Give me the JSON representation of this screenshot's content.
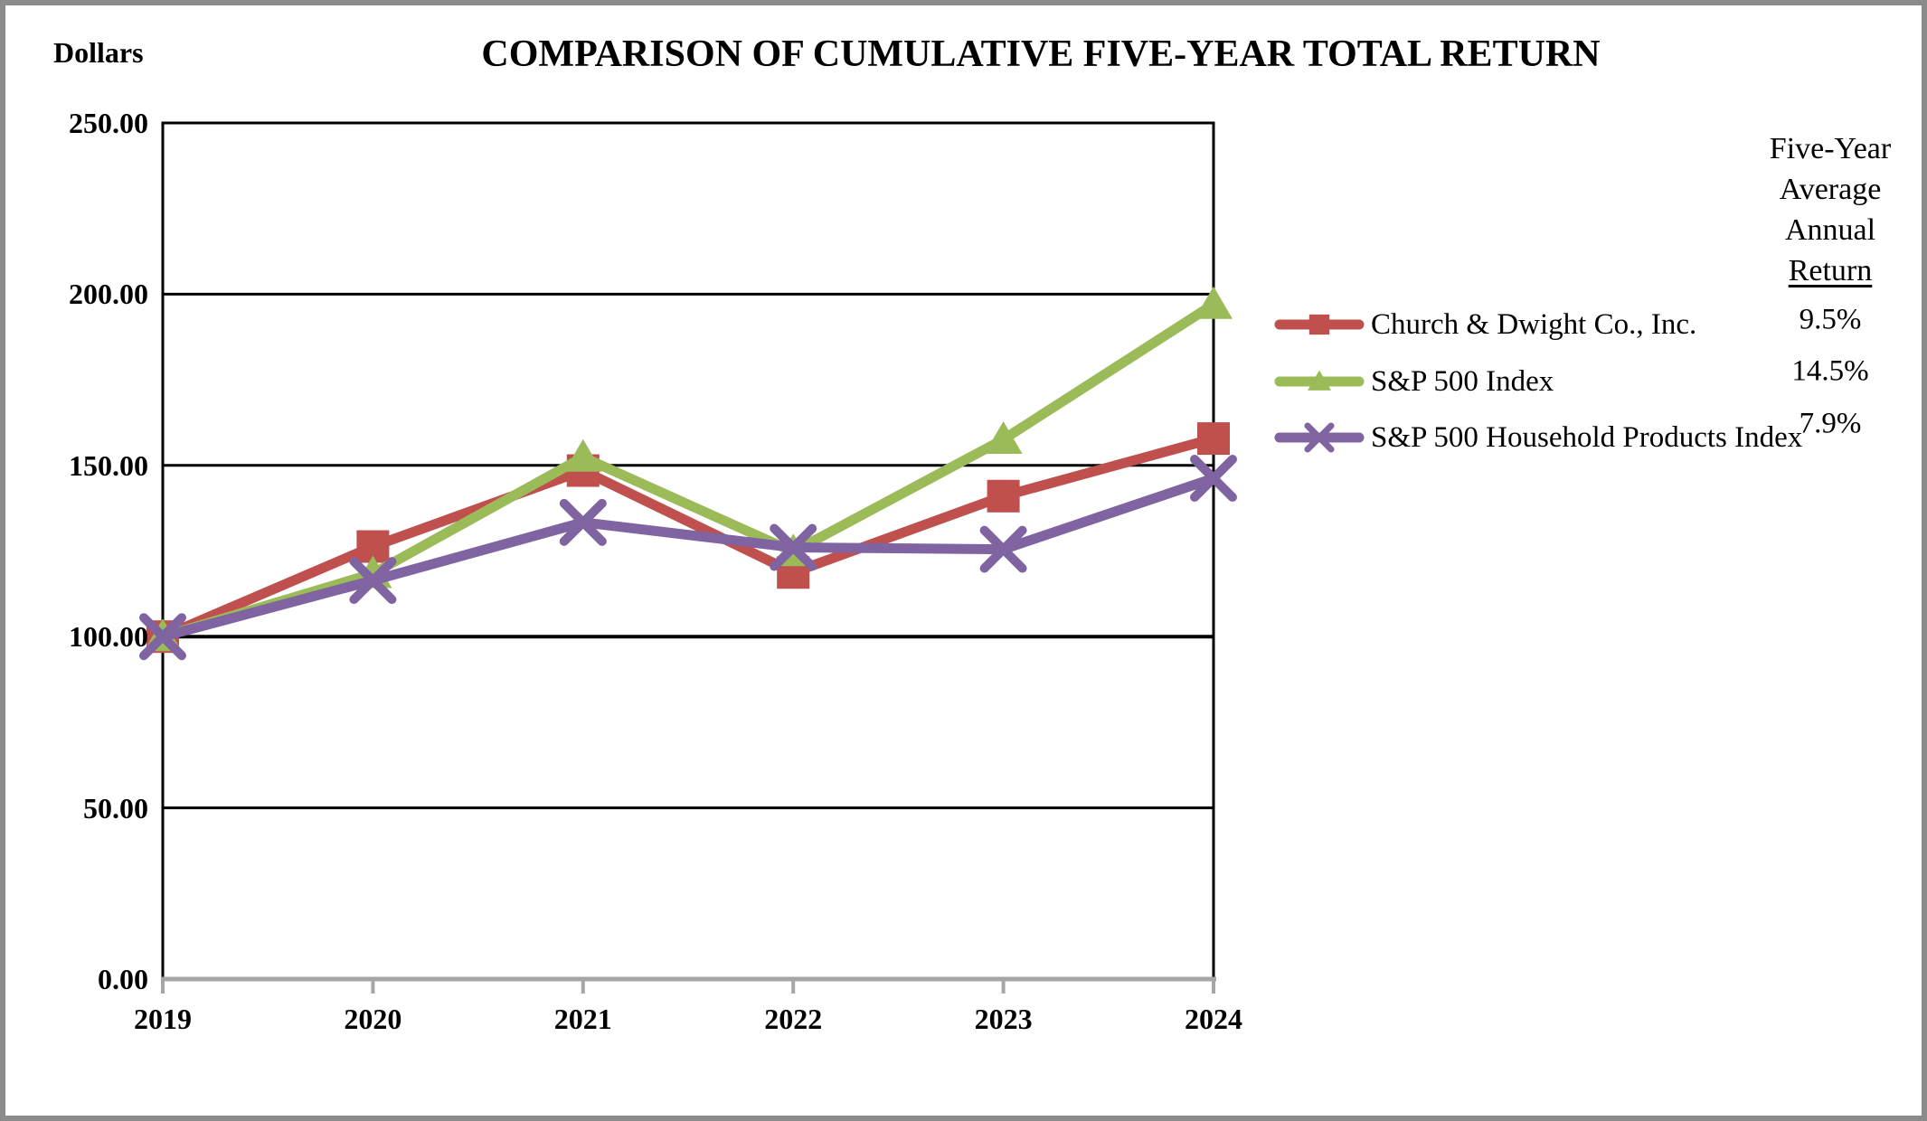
{
  "chart_data": {
    "type": "line",
    "title": "COMPARISON OF CUMULATIVE FIVE-YEAR TOTAL RETURN",
    "ylabel": "Dollars",
    "categories": [
      "2019",
      "2020",
      "2021",
      "2022",
      "2023",
      "2024"
    ],
    "ylim": [
      0,
      250
    ],
    "ytick_step": 50,
    "ytick_labels": [
      "0.00",
      "50.00",
      "100.00",
      "150.00",
      "200.00",
      "250.00"
    ],
    "grid": true,
    "legend_position": "right",
    "legend_header_lines": [
      "Five-Year",
      "Average",
      "Annual",
      "Return"
    ],
    "series": [
      {
        "name": "Church & Dwight Co., Inc.",
        "color": "#C0504D",
        "marker": "square",
        "five_year_average_annual_return": "9.5%",
        "values": [
          100.0,
          126.31,
          148.49,
          118.73,
          141.03,
          157.84
        ]
      },
      {
        "name": "S&P 500 Index",
        "color": "#9BBB59",
        "marker": "triangle",
        "five_year_average_annual_return": "14.5%",
        "values": [
          100.0,
          118.4,
          152.39,
          124.79,
          157.59,
          197.02
        ]
      },
      {
        "name": "S&P 500 Household Products Index",
        "color": "#8064A2",
        "marker": "x",
        "five_year_average_annual_return": "7.9%",
        "values": [
          100.0,
          116.39,
          133.36,
          126.04,
          125.5,
          146.24
        ]
      }
    ]
  },
  "colors": {
    "gridline": "#000000",
    "plot_border": "#000000",
    "baseline_axis": "#A6A6A6",
    "page_border": "#8B8B8B"
  }
}
